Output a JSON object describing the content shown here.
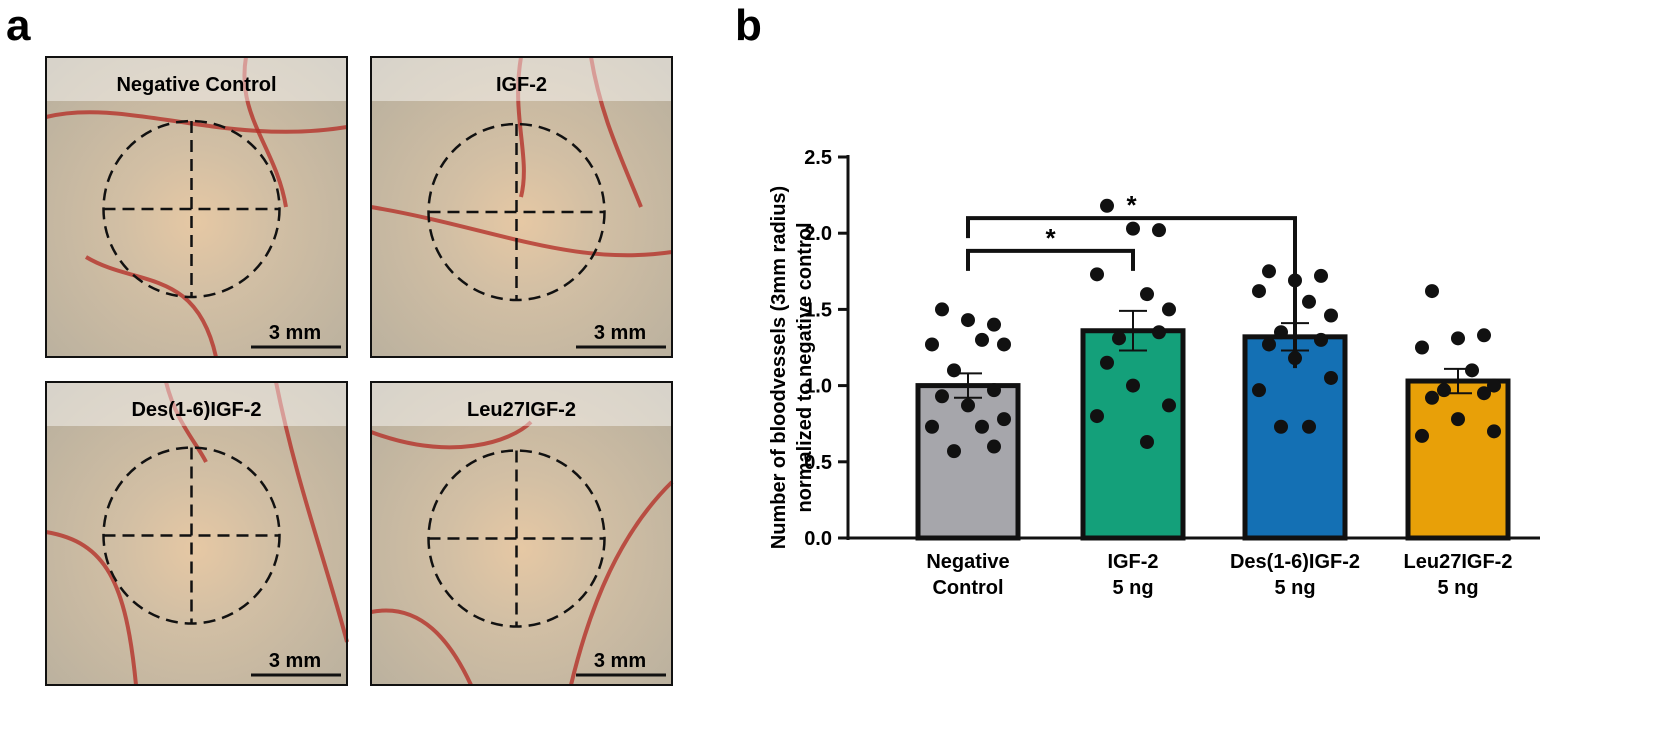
{
  "panel_labels": [
    "a",
    "b"
  ],
  "images": [
    {
      "title": "Negative Control",
      "scale": "3 mm"
    },
    {
      "title": "IGF-2",
      "scale": "3 mm"
    },
    {
      "title": "Des(1-6)IGF-2",
      "scale": "3 mm"
    },
    {
      "title": "Leu27IGF-2",
      "scale": "3 mm"
    }
  ],
  "chart_data": {
    "type": "bar",
    "ylabel": [
      "Number of bloodvessels (3mm radius)",
      "normalized to negative control"
    ],
    "categories": [
      [
        "Negative",
        "Control"
      ],
      [
        "IGF-2",
        "5 ng"
      ],
      [
        "Des(1-6)IGF-2",
        "5 ng"
      ],
      [
        "Leu27IGF-2",
        "5 ng"
      ]
    ],
    "values": [
      1.0,
      1.36,
      1.32,
      1.03
    ],
    "errors": [
      0.08,
      0.13,
      0.09,
      0.08
    ],
    "colors": [
      "#a6a6ab",
      "#14a07a",
      "#1470b4",
      "#e8a008"
    ],
    "points": [
      [
        1.5,
        1.4,
        1.43,
        1.27,
        1.3,
        1.27,
        1.1,
        0.97,
        0.93,
        0.87,
        0.78,
        0.73,
        0.73,
        0.57,
        0.6
      ],
      [
        2.18,
        2.02,
        2.03,
        1.73,
        1.6,
        1.5,
        1.31,
        1.35,
        1.15,
        1.0,
        0.87,
        0.8,
        0.63
      ],
      [
        1.75,
        1.72,
        1.69,
        1.62,
        1.55,
        1.46,
        1.35,
        1.3,
        1.27,
        1.18,
        1.05,
        0.97,
        0.73,
        0.73
      ],
      [
        1.62,
        1.33,
        1.31,
        1.25,
        1.1,
        1.0,
        0.97,
        0.95,
        0.92,
        0.78,
        0.7,
        0.67
      ]
    ],
    "significance": [
      {
        "from": 0,
        "to": 1,
        "label": "*"
      },
      {
        "from": 0,
        "to": 2,
        "label": "*"
      }
    ],
    "ylim": [
      0,
      2.5
    ],
    "yticks": [
      {
        "value": 0,
        "label": "0.0"
      },
      0.5,
      {
        "value": 1,
        "label": "1.0"
      },
      1.5,
      {
        "value": 2,
        "label": "2.0"
      },
      2.5
    ]
  }
}
